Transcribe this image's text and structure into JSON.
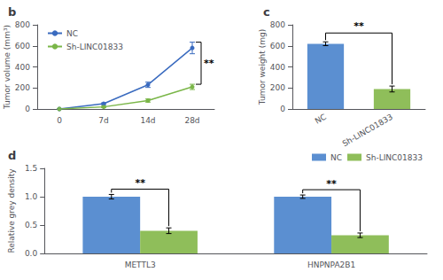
{
  "chart_data": [
    {
      "type": "line",
      "title": "b",
      "categories": [
        "0",
        "7d",
        "14d",
        "28d"
      ],
      "series": [
        {
          "name": "NC",
          "color": "#3a6bbf",
          "marker": "circle",
          "values": [
            0,
            50,
            230,
            580
          ],
          "errors": [
            0,
            8,
            25,
            55
          ]
        },
        {
          "name": "Sh-LINC01833",
          "color": "#7ab648",
          "marker": "circle",
          "values": [
            0,
            20,
            80,
            210
          ],
          "errors": [
            0,
            6,
            15,
            25
          ]
        }
      ],
      "ylabel": "Tumor volume (mm³)",
      "ylim": [
        0,
        800
      ],
      "yticks": [
        0,
        200,
        400,
        600,
        800
      ],
      "legend": "upper left",
      "grid": false,
      "annotations": [
        "**"
      ]
    },
    {
      "type": "bar",
      "title": "c",
      "categories": [
        "NC",
        "Sh-LINC01833"
      ],
      "values": [
        620,
        190
      ],
      "errors": [
        18,
        28
      ],
      "colors": [
        "#5b8fd1",
        "#8fbe5a"
      ],
      "ylabel": "Tumor weight (mg)",
      "ylim": [
        0,
        800
      ],
      "yticks": [
        0,
        200,
        400,
        600,
        800
      ],
      "grid": false,
      "annotations": [
        "**"
      ]
    },
    {
      "type": "bar",
      "title": "d",
      "categories": [
        "METTL3",
        "HNPNPA2B1"
      ],
      "series": [
        {
          "name": "NC",
          "color": "#5b8fd1",
          "values": [
            1.0,
            1.0
          ],
          "errors": [
            0.04,
            0.03
          ]
        },
        {
          "name": "Sh-LINC01833",
          "color": "#8fbe5a",
          "values": [
            0.4,
            0.32
          ],
          "errors": [
            0.05,
            0.04
          ]
        }
      ],
      "ylabel": "Relative grey density",
      "ylim": [
        0,
        1.5
      ],
      "yticks": [
        {
          "value": 0.0,
          "label": "0.0"
        },
        {
          "value": 0.5,
          "label": "0.5"
        },
        {
          "value": 1.0,
          "label": "1.0"
        },
        {
          "value": 1.5,
          "label": "1.5"
        }
      ],
      "legend": "upper right",
      "grid": false,
      "annotations": [
        "**",
        "**"
      ]
    }
  ]
}
